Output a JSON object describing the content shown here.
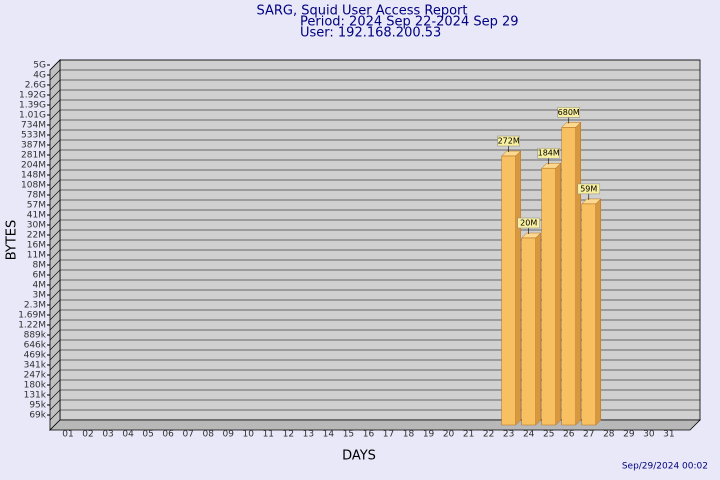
{
  "chart_data": {
    "type": "bar3d",
    "title": "SARG, Squid User Access Report",
    "subtitle": [
      "Period: 2024 Sep 22-2024 Sep 29",
      "User: 192.168.200.53"
    ],
    "x_label": "DAYS",
    "y_label": "BYTES",
    "footer": "Sep/29/2024 00:02",
    "categories": [
      "01",
      "02",
      "03",
      "04",
      "05",
      "06",
      "07",
      "08",
      "09",
      "10",
      "11",
      "12",
      "13",
      "14",
      "15",
      "16",
      "17",
      "18",
      "19",
      "20",
      "21",
      "22",
      "23",
      "24",
      "25",
      "26",
      "27",
      "28",
      "29",
      "30",
      "31"
    ],
    "values": [
      null,
      null,
      null,
      null,
      null,
      null,
      null,
      null,
      null,
      null,
      null,
      null,
      null,
      null,
      null,
      null,
      null,
      null,
      null,
      null,
      null,
      null,
      272000000,
      20000000,
      184000000,
      680000000,
      59000000,
      null,
      null,
      null,
      null
    ],
    "value_labels": [
      null,
      null,
      null,
      null,
      null,
      null,
      null,
      null,
      null,
      null,
      null,
      null,
      null,
      null,
      null,
      null,
      null,
      null,
      null,
      null,
      null,
      null,
      "272M",
      "20M",
      "184M",
      "680M",
      "59M",
      null,
      null,
      null,
      null
    ],
    "color": "#f8c060",
    "ylim": [
      50000,
      6000000000
    ],
    "yticks": [
      {
        "value": 5000000000,
        "label": "5G"
      },
      {
        "value": 4000000000,
        "label": "4G"
      },
      {
        "value": 2600000000,
        "label": "2.6G"
      },
      {
        "value": 1920000000,
        "label": "1.92G"
      },
      {
        "value": 1390000000,
        "label": "1.39G"
      },
      {
        "value": 1010000000,
        "label": "1.01G"
      },
      {
        "value": 734000000,
        "label": "734M"
      },
      {
        "value": 533000000,
        "label": "533M"
      },
      {
        "value": 387000000,
        "label": "387M"
      },
      {
        "value": 281000000,
        "label": "281M"
      },
      {
        "value": 204000000,
        "label": "204M"
      },
      {
        "value": 148000000,
        "label": "148M"
      },
      {
        "value": 108000000,
        "label": "108M"
      },
      {
        "value": 78000000,
        "label": "78M"
      },
      {
        "value": 57000000,
        "label": "57M"
      },
      {
        "value": 41000000,
        "label": "41M"
      },
      {
        "value": 30000000,
        "label": "30M"
      },
      {
        "value": 22000000,
        "label": "22M"
      },
      {
        "value": 16000000,
        "label": "16M"
      },
      {
        "value": 11000000,
        "label": "11M"
      },
      {
        "value": 8000000,
        "label": "8M"
      },
      {
        "value": 6000000,
        "label": "6M"
      },
      {
        "value": 4000000,
        "label": "4M"
      },
      {
        "value": 3000000,
        "label": "3M"
      },
      {
        "value": 2300000,
        "label": "2.3M"
      },
      {
        "value": 1690000,
        "label": "1.69M"
      },
      {
        "value": 1220000,
        "label": "1.22M"
      },
      {
        "value": 889000,
        "label": "889k"
      },
      {
        "value": 646000,
        "label": "646k"
      },
      {
        "value": 469000,
        "label": "469k"
      },
      {
        "value": 341000,
        "label": "341k"
      },
      {
        "value": 247000,
        "label": "247k"
      },
      {
        "value": 180000,
        "label": "180k"
      },
      {
        "value": 131000,
        "label": "131k"
      },
      {
        "value": 95000,
        "label": "95k"
      },
      {
        "value": 69000,
        "label": "69k"
      }
    ],
    "grid": true
  }
}
